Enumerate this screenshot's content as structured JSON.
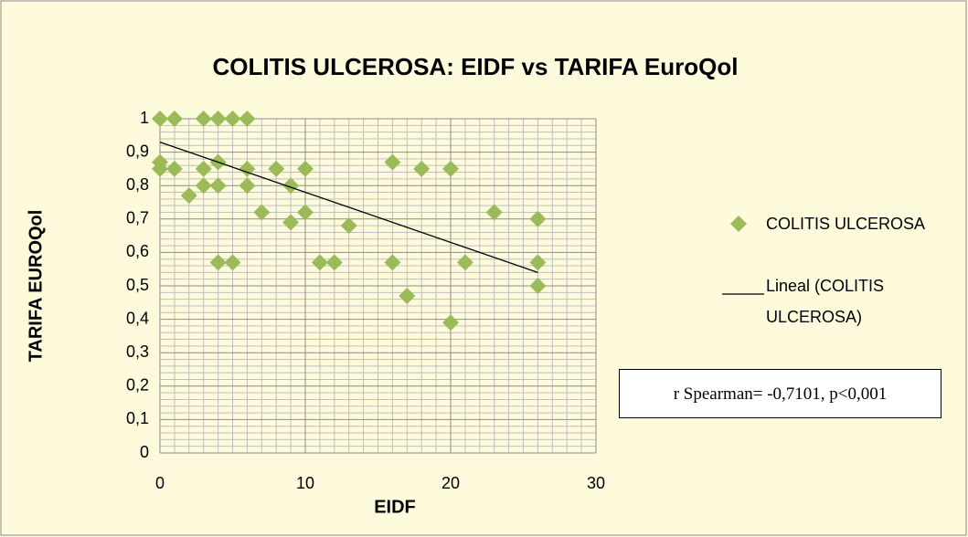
{
  "chart_data": {
    "type": "scatter",
    "title": "COLITIS ULCEROSA: EIDF vs TARIFA EuroQol",
    "xlabel": "EIDF",
    "ylabel": "TARIFA EUROQol",
    "annotation": "r Spearman= -0,7101, p<0,001",
    "xlim": [
      0,
      30
    ],
    "ylim": [
      0,
      1
    ],
    "xticks": [
      0,
      10,
      20,
      30
    ],
    "yticks": [
      0,
      {
        "value": 0.1,
        "label": "0,1"
      },
      {
        "value": 0.2,
        "label": "0,2"
      },
      {
        "value": 0.3,
        "label": "0,3"
      },
      {
        "value": 0.4,
        "label": "0,4"
      },
      {
        "value": 0.5,
        "label": "0,5"
      },
      {
        "value": 0.6,
        "label": "0,6"
      },
      {
        "value": 0.7,
        "label": "0,7"
      },
      {
        "value": 0.8,
        "label": "0,8"
      },
      {
        "value": 0.9,
        "label": "0,9"
      },
      1
    ],
    "grid": true,
    "minor_grid": {
      "x": 10,
      "y": 5
    },
    "series": [
      {
        "name": "COLITIS ULCEROSA",
        "color": "#9bbb59",
        "kind": "marker",
        "x": [
          0,
          1,
          3,
          4,
          5,
          6,
          0,
          0,
          1,
          3,
          4,
          6,
          8,
          10,
          16,
          18,
          20,
          2,
          3,
          4,
          6,
          9,
          7,
          9,
          10,
          13,
          23,
          26,
          4,
          5,
          11,
          12,
          16,
          21,
          26,
          17,
          26,
          20
        ],
        "values": [
          1,
          1,
          1,
          1,
          1,
          1,
          0.87,
          0.85,
          0.85,
          0.85,
          0.87,
          0.85,
          0.85,
          0.85,
          0.87,
          0.85,
          0.85,
          0.77,
          0.8,
          0.8,
          0.8,
          0.8,
          0.72,
          0.69,
          0.72,
          0.68,
          0.72,
          0.7,
          0.57,
          0.57,
          0.57,
          0.57,
          0.57,
          0.57,
          0.57,
          0.47,
          0.5,
          0.39
        ]
      },
      {
        "name": "Lineal (COLITIS ULCEROSA)",
        "color": "#000000",
        "kind": "line",
        "x": [
          0,
          26
        ],
        "values": [
          0.93,
          0.54
        ]
      }
    ]
  }
}
